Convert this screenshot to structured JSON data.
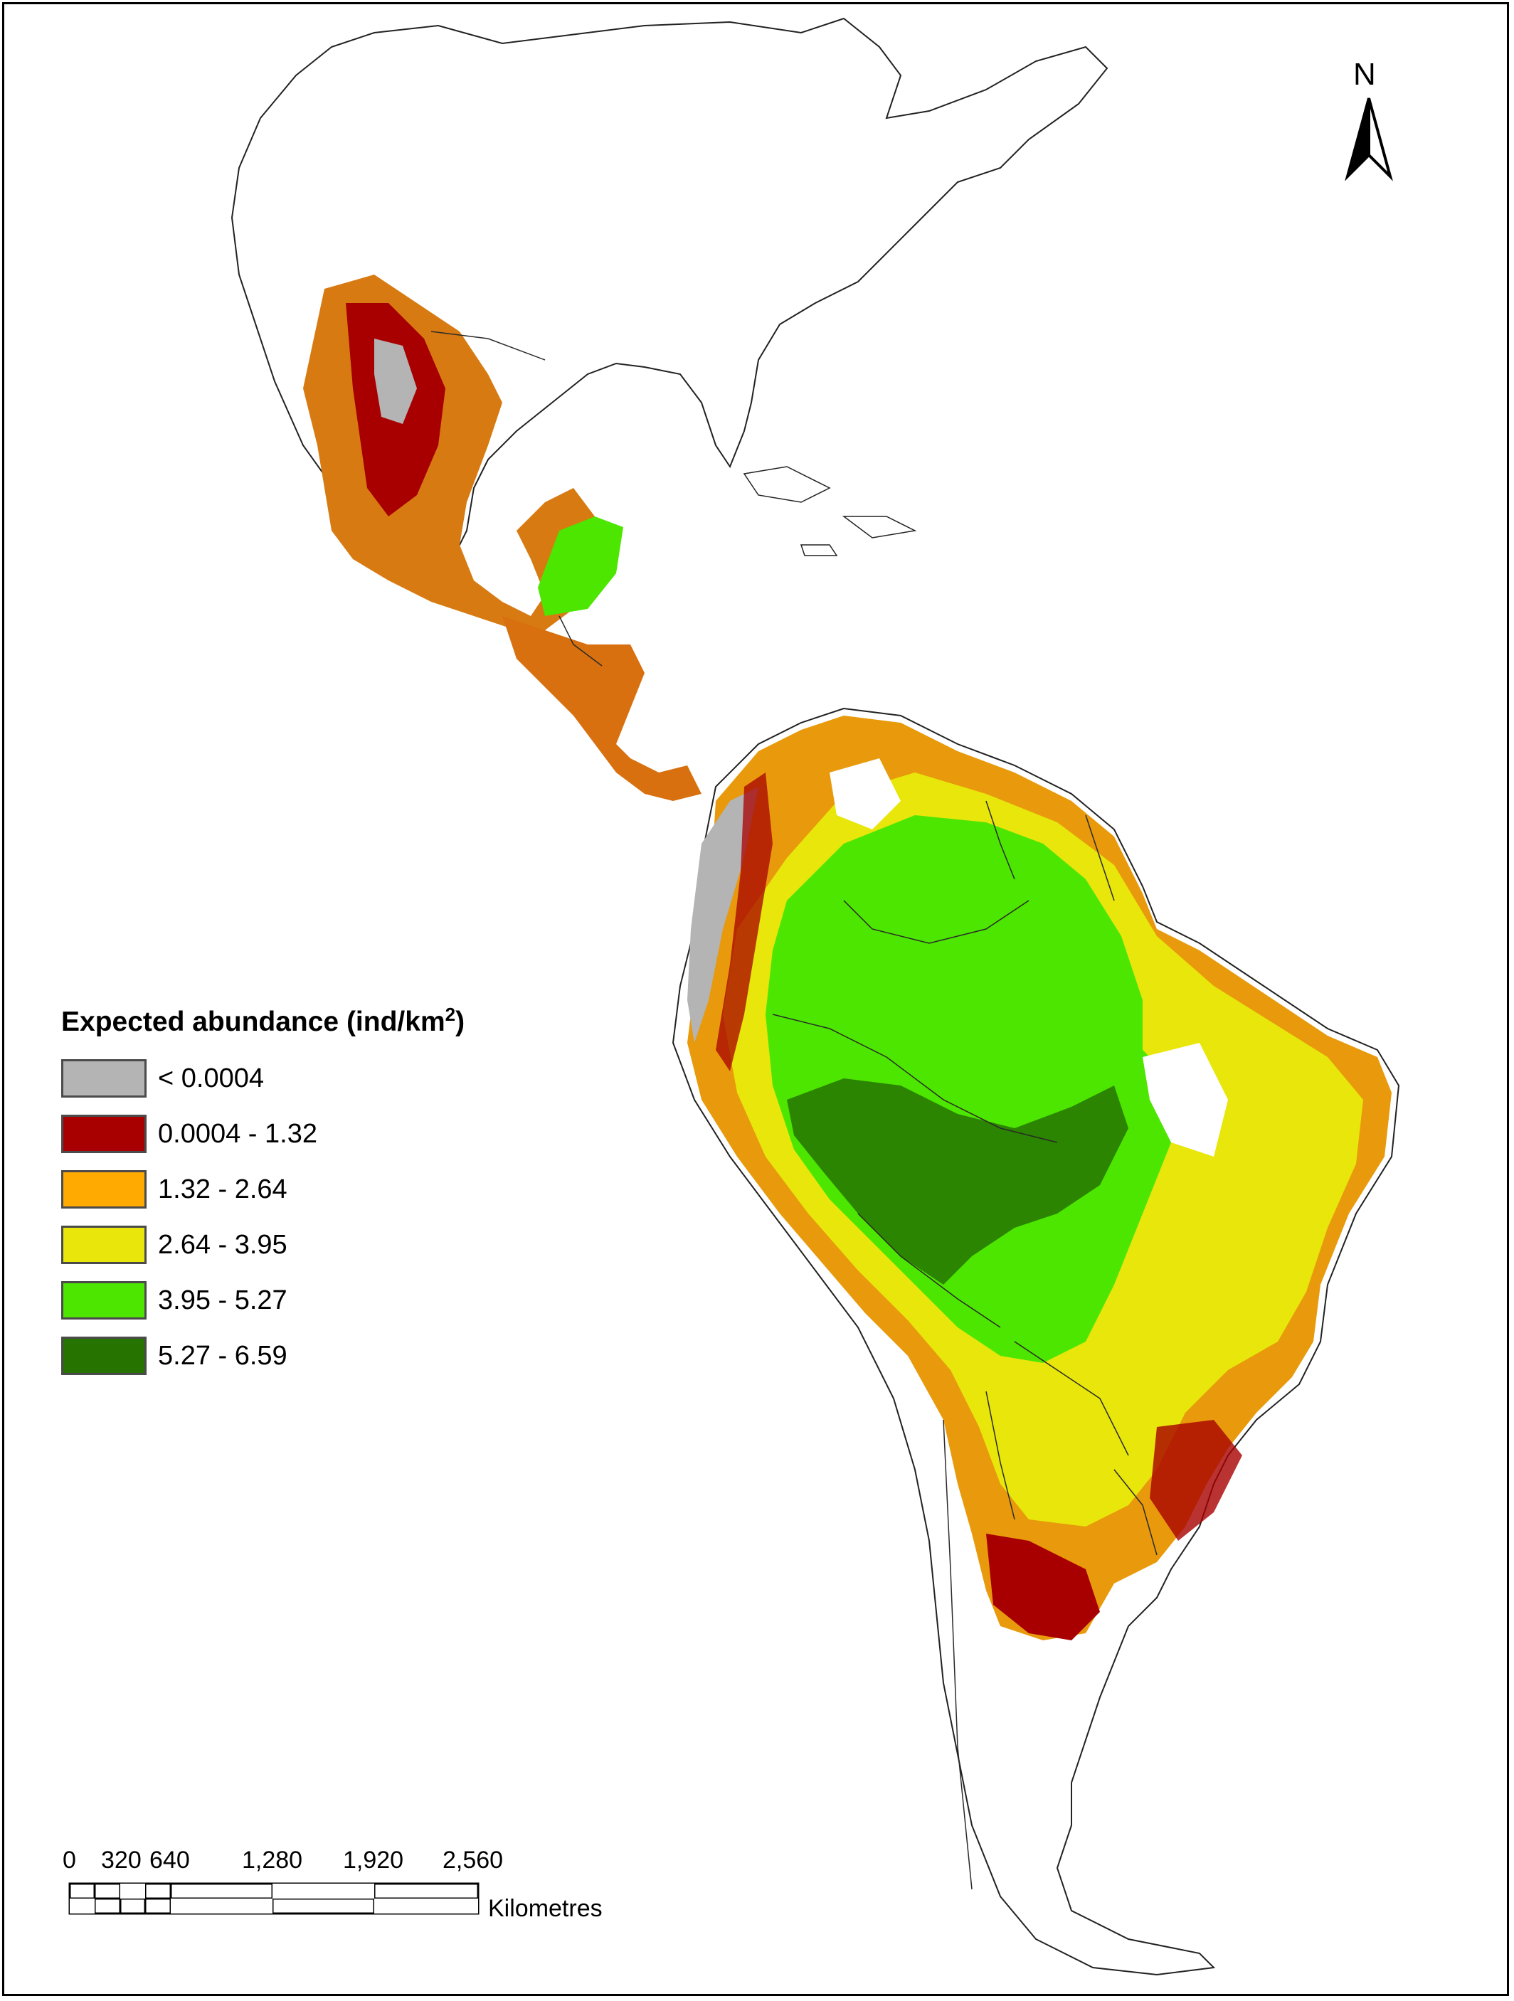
{
  "map": {
    "north_arrow": {
      "label": "N",
      "icon": "north-arrow-icon"
    },
    "legend": {
      "title_main": "Expected abundance (ind/km",
      "title_sup": "2",
      "title_end": ")",
      "classes": [
        {
          "label": "< 0.0004",
          "color": "#b4b4b4"
        },
        {
          "label": "0.0004 - 1.32",
          "color": "#a80000"
        },
        {
          "label": "1.32 - 2.64",
          "color": "#ffaa00"
        },
        {
          "label": "2.64 - 3.95",
          "color": "#e8e60a"
        },
        {
          "label": "3.95 - 5.27",
          "color": "#4ce600"
        },
        {
          "label": "5.27 - 6.59",
          "color": "#267300"
        }
      ]
    },
    "scale_bar": {
      "ticks": [
        "0",
        "320",
        "640",
        "1,280",
        "1,920",
        "2,560"
      ],
      "unit": "Kilometres"
    }
  }
}
